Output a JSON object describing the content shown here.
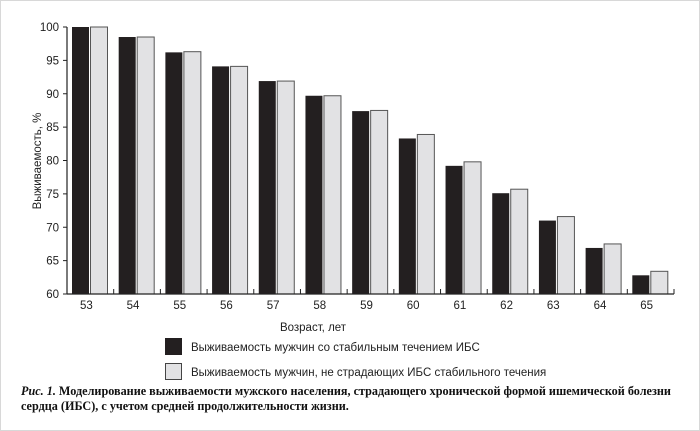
{
  "chart_data": {
    "type": "bar",
    "title": "",
    "xlabel": "Возраст, лет",
    "ylabel": "Выживаемость, %",
    "ylim": [
      60,
      100
    ],
    "yticks": [
      60,
      65,
      70,
      75,
      80,
      85,
      90,
      95,
      100
    ],
    "grid": false,
    "legend_placement": "bottom-center",
    "categories": [
      "53",
      "54",
      "55",
      "56",
      "57",
      "58",
      "59",
      "60",
      "61",
      "62",
      "63",
      "64",
      "65"
    ],
    "series": [
      {
        "name": "Выживаемость мужчин со стабильным течением ИБС",
        "color": "#231f20",
        "values": [
          100,
          98.5,
          96.2,
          94.1,
          91.9,
          89.7,
          87.4,
          83.3,
          79.2,
          75.1,
          71.0,
          66.9,
          62.8
        ]
      },
      {
        "name": "Выживаемость мужчин, не страдающих ИБС стабильного течения",
        "color": "#e2e2e4",
        "values": [
          100,
          98.5,
          96.3,
          94.1,
          91.9,
          89.7,
          87.5,
          83.9,
          79.8,
          75.7,
          71.6,
          67.5,
          63.4
        ]
      }
    ]
  },
  "caption": {
    "label": "Рис. 1.",
    "text": " Моделирование выживаемости мужского населения, страдающего хронической формой ишемической болезни сердца (ИБС), с учетом средней продолжительности жизни."
  }
}
